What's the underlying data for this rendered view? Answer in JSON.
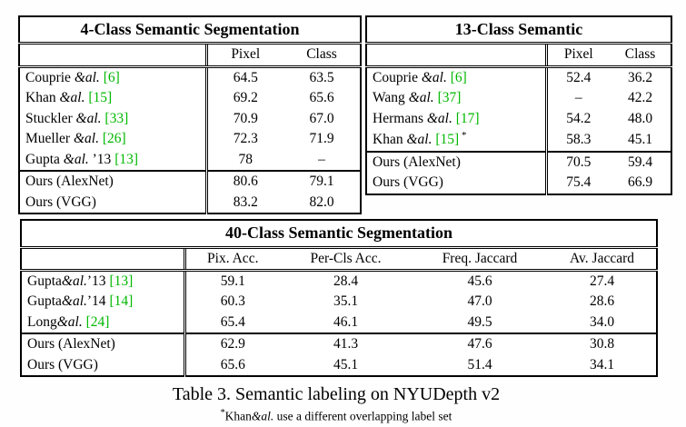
{
  "page": {
    "caption": "Table 3. Semantic labeling on NYUDepth v2",
    "footnote": {
      "marker": "*",
      "author": "Khan",
      "etal": "&al.",
      "text": " use a different overlapping label set"
    }
  },
  "colors": {
    "citation_green": "#00b800",
    "text": "#000000",
    "background": "#ffffff"
  },
  "tables": [
    {
      "title": "4-Class Semantic Segmentation",
      "columns": [
        "Pixel",
        "Class"
      ],
      "rows": [
        {
          "pre": "Couprie ",
          "etal": "&al.",
          "post": "",
          "cite": "[6]",
          "mark": "",
          "values": [
            "64.5",
            "63.5"
          ],
          "bold": [
            false,
            false
          ],
          "sep": false
        },
        {
          "pre": "Khan ",
          "etal": "&al.",
          "post": "",
          "cite": "[15]",
          "mark": "",
          "values": [
            "69.2",
            "65.6"
          ],
          "bold": [
            false,
            false
          ],
          "sep": false
        },
        {
          "pre": "Stuckler ",
          "etal": "&al.",
          "post": "",
          "cite": "[33]",
          "mark": "",
          "values": [
            "70.9",
            "67.0"
          ],
          "bold": [
            false,
            false
          ],
          "sep": false
        },
        {
          "pre": "Mueller ",
          "etal": "&al.",
          "post": "",
          "cite": "[26]",
          "mark": "",
          "values": [
            "72.3",
            "71.9"
          ],
          "bold": [
            false,
            false
          ],
          "sep": false
        },
        {
          "pre": "Gupta ",
          "etal": "&al.",
          "post": " ’13",
          "cite": "[13]",
          "mark": "",
          "values": [
            "78",
            "–"
          ],
          "bold": [
            false,
            false
          ],
          "sep": false
        },
        {
          "pre": "Ours (AlexNet)",
          "etal": "",
          "post": "",
          "cite": "",
          "mark": "",
          "values": [
            "80.6",
            "79.1"
          ],
          "bold": [
            false,
            false
          ],
          "sep": true
        },
        {
          "pre": "Ours (VGG)",
          "etal": "",
          "post": "",
          "cite": "",
          "mark": "",
          "values": [
            "83.2",
            "82.0"
          ],
          "bold": [
            true,
            true
          ],
          "sep": false
        }
      ]
    },
    {
      "title": "13-Class Semantic",
      "columns": [
        "Pixel",
        "Class"
      ],
      "rows": [
        {
          "pre": "Couprie ",
          "etal": "&al.",
          "post": "",
          "cite": "[6]",
          "mark": "",
          "values": [
            "52.4",
            "36.2"
          ],
          "bold": [
            false,
            false
          ],
          "sep": false
        },
        {
          "pre": "Wang ",
          "etal": "&al.",
          "post": "",
          "cite": "[37]",
          "mark": "",
          "values": [
            "–",
            "42.2"
          ],
          "bold": [
            false,
            false
          ],
          "sep": false
        },
        {
          "pre": "Hermans ",
          "etal": "&al.",
          "post": "",
          "cite": "[17]",
          "mark": "",
          "values": [
            "54.2",
            "48.0"
          ],
          "bold": [
            false,
            false
          ],
          "sep": false
        },
        {
          "pre": "Khan ",
          "etal": "&al.",
          "post": "",
          "cite": "[15]",
          "mark": "*",
          "values": [
            "58.3",
            "45.1"
          ],
          "bold": [
            false,
            false
          ],
          "sep": false
        },
        {
          "pre": "Ours (AlexNet)",
          "etal": "",
          "post": "",
          "cite": "",
          "mark": "",
          "values": [
            "70.5",
            "59.4"
          ],
          "bold": [
            false,
            false
          ],
          "sep": true
        },
        {
          "pre": "Ours (VGG)",
          "etal": "",
          "post": "",
          "cite": "",
          "mark": "",
          "values": [
            "75.4",
            "66.9"
          ],
          "bold": [
            true,
            true
          ],
          "sep": false
        }
      ]
    },
    {
      "title": "40-Class Semantic Segmentation",
      "columns": [
        "Pix. Acc.",
        "Per-Cls Acc.",
        "Freq. Jaccard",
        "Av. Jaccard"
      ],
      "rows": [
        {
          "pre": "Gupta",
          "etal": "&al.",
          "post": "’13",
          "cite": "[13]",
          "mark": "",
          "values": [
            "59.1",
            "28.4",
            "45.6",
            "27.4"
          ],
          "bold": [
            false,
            false,
            false,
            false
          ],
          "sep": false
        },
        {
          "pre": "Gupta",
          "etal": "&al.",
          "post": "’14",
          "cite": "[14]",
          "mark": "",
          "values": [
            "60.3",
            "35.1",
            "47.0",
            "28.6"
          ],
          "bold": [
            false,
            false,
            false,
            false
          ],
          "sep": false
        },
        {
          "pre": "Long",
          "etal": "&al.",
          "post": "",
          "cite": "[24]",
          "mark": "",
          "values": [
            "65.4",
            "46.1",
            "49.5",
            "34.0"
          ],
          "bold": [
            false,
            true,
            false,
            false
          ],
          "sep": false
        },
        {
          "pre": "Ours (AlexNet)",
          "etal": "",
          "post": "",
          "cite": "",
          "mark": "",
          "values": [
            "62.9",
            "41.3",
            "47.6",
            "30.8"
          ],
          "bold": [
            false,
            false,
            false,
            false
          ],
          "sep": true
        },
        {
          "pre": "Ours (VGG)",
          "etal": "",
          "post": "",
          "cite": "",
          "mark": "",
          "values": [
            "65.6",
            "45.1",
            "51.4",
            "34.1"
          ],
          "bold": [
            true,
            false,
            true,
            true
          ],
          "sep": false
        }
      ]
    }
  ]
}
